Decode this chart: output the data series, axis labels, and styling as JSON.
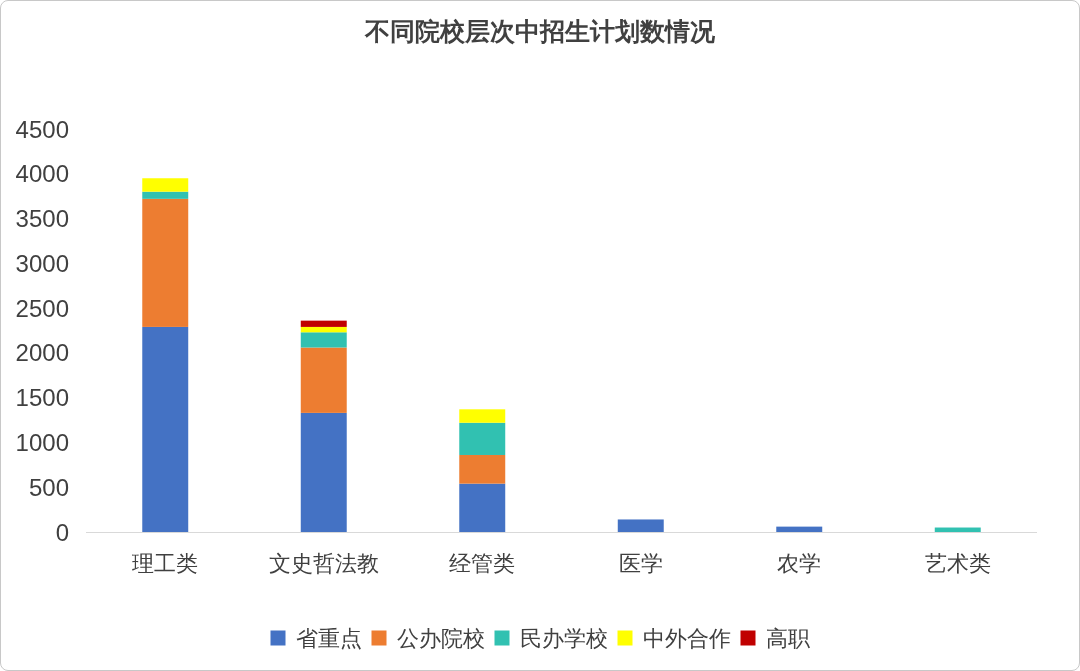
{
  "chart_data": {
    "type": "bar",
    "title": "不同院校层次中招生计划数情况",
    "categories": [
      "理工类",
      "文史哲法教",
      "经管类",
      "医学",
      "农学",
      "艺术类"
    ],
    "series": [
      {
        "name": "省重点",
        "color": "#4472c4",
        "values": [
          2290,
          1330,
          540,
          140,
          60,
          null
        ]
      },
      {
        "name": "公办院校",
        "color": "#ed7d31",
        "values": [
          1430,
          730,
          320,
          null,
          null,
          null
        ]
      },
      {
        "name": "民办学校",
        "color": "#31c1b1",
        "values": [
          80,
          170,
          360,
          null,
          null,
          50
        ]
      },
      {
        "name": "中外合作",
        "color": "#ffff00",
        "values": [
          150,
          60,
          150,
          null,
          null,
          null
        ]
      },
      {
        "name": "高职",
        "color": "#c00000",
        "values": [
          null,
          70,
          null,
          null,
          null,
          null
        ]
      }
    ],
    "stacked": true,
    "ylim": [
      0,
      4500
    ],
    "yticks": [
      0,
      500,
      1000,
      1500,
      2000,
      2500,
      3000,
      3500,
      4000,
      4500
    ],
    "grid": false,
    "legend": "bottom"
  }
}
